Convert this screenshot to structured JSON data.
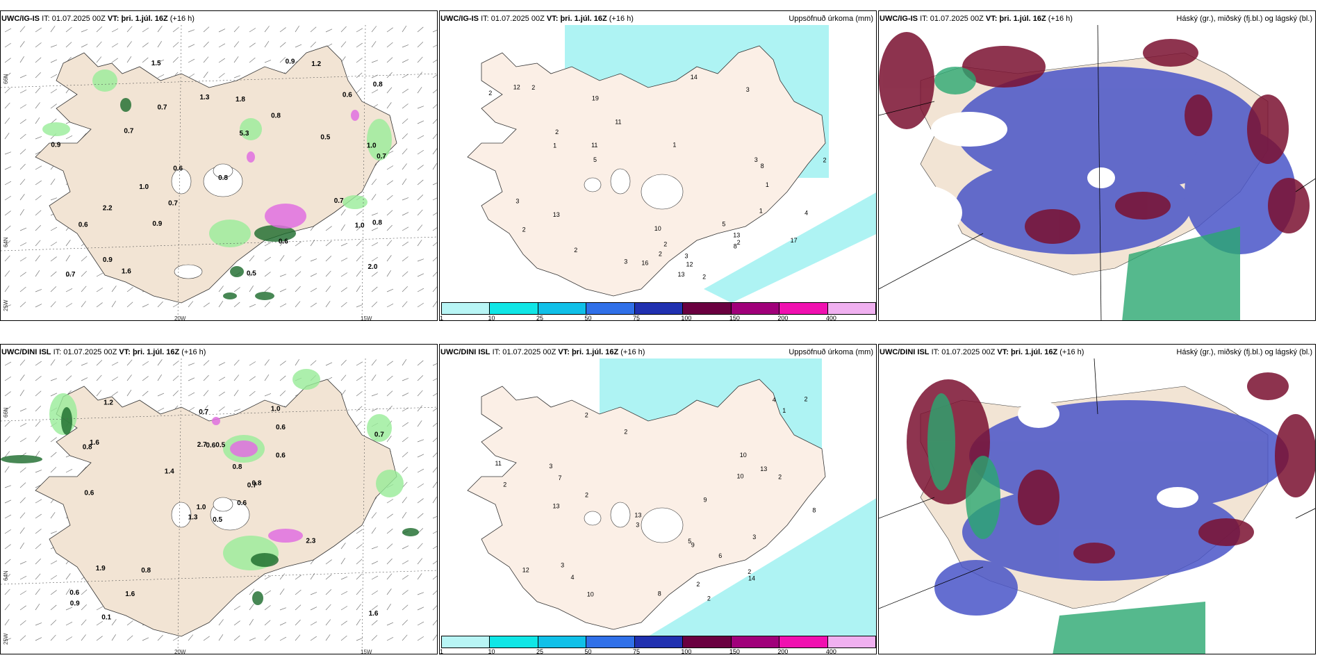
{
  "panels": {
    "top_left": {
      "model": "UWC/IG-IS",
      "it_label": "IT:",
      "it_value": "01.07.2025 00Z",
      "vt_label": "VT:",
      "vt_value": "þri. 1.júl. 16Z",
      "lead": "(+16 h)",
      "lon_labels": [
        "20W",
        "15W"
      ],
      "lat_labels": [
        "66N",
        "64N",
        "25W"
      ],
      "values": [
        "0.7",
        "1.0",
        "0.8",
        "0.7",
        "0.6",
        "0.8",
        "0.7",
        "0.9",
        "1.0",
        "0.6",
        "0.7",
        "0.7",
        "0.5",
        "0.9",
        "0.6",
        "0.8",
        "1.0",
        "0.9",
        "1.5",
        "1.3",
        "2.0",
        "1.8",
        "0.9",
        "2.2",
        "5.3",
        "1.2",
        "0.7",
        "0.6",
        "0.5",
        "0.8",
        "1.6"
      ]
    },
    "top_mid": {
      "model": "UWC/IG-IS",
      "it_label": "IT:",
      "it_value": "01.07.2025 00Z",
      "vt_label": "VT:",
      "vt_value": "þri. 1.júl. 16Z",
      "lead": "(+16 h)",
      "title_right": "Uppsöfnuð úrkoma (mm)",
      "values": [
        "3",
        "2",
        "1",
        "2",
        "2",
        "2",
        "2",
        "3",
        "3",
        "2",
        "13",
        "17",
        "16",
        "2",
        "3",
        "12",
        "13",
        "2",
        "4",
        "8",
        "2",
        "1",
        "1",
        "5",
        "3",
        "2",
        "14",
        "13",
        "19",
        "11",
        "12",
        "5",
        "1",
        "10",
        "8",
        "11"
      ]
    },
    "top_right": {
      "model": "UWC/IG-IS",
      "it_label": "IT:",
      "it_value": "01.07.2025 00Z",
      "vt_label": "VT:",
      "vt_value": "þri. 1.júl. 16Z",
      "lead": "(+16 h)",
      "title_right": "Háský (gr.), miðský (fj.bl.) og lágský (bl.)"
    },
    "bot_left": {
      "model": "UWC/DINI ISL",
      "it_label": "IT:",
      "it_value": "01.07.2025 00Z",
      "vt_label": "VT:",
      "vt_value": "þri. 1.júl. 16Z",
      "lead": "(+16 h)",
      "lon_labels": [
        "20W",
        "15W"
      ],
      "lat_labels": [
        "66N",
        "64N",
        "25W"
      ],
      "values": [
        "0.5",
        "0.8",
        "1.0",
        "0.6",
        "0.7",
        "0.8",
        "1.0",
        "0.5",
        "0.6",
        "0.6",
        "1.2",
        "1.6",
        "0.6",
        "0.7",
        "1.3",
        "0.6",
        "0.1",
        "2.7",
        "0.8",
        "1.9",
        "1.4",
        "0.9",
        "1.6",
        "0.6",
        "0.8",
        "2.3",
        "1.6",
        "0.7"
      ]
    },
    "bot_mid": {
      "model": "UWC/DINI ISL",
      "it_label": "IT:",
      "it_value": "01.07.2025 00Z",
      "vt_label": "VT:",
      "vt_value": "þri. 1.júl. 16Z",
      "lead": "(+16 h)",
      "title_right": "Uppsöfnuð úrkoma (mm)",
      "values": [
        "2",
        "2",
        "3",
        "3",
        "13",
        "2",
        "8",
        "2",
        "3",
        "4",
        "12",
        "11",
        "13",
        "5",
        "10",
        "4",
        "2",
        "1",
        "3",
        "2",
        "2",
        "9",
        "10",
        "14",
        "9",
        "10",
        "13",
        "7",
        "8",
        "2",
        "6",
        "2"
      ]
    },
    "bot_right": {
      "model": "UWC/DINI ISL",
      "it_label": "IT:",
      "it_value": "01.07.2025 00Z",
      "vt_label": "VT:",
      "vt_value": "þri. 1.júl. 16Z",
      "lead": "(+16 h)",
      "title_right": "Háský (gr.), miðský (fj.bl.) og lágský (bl.)"
    }
  },
  "legend": {
    "ticks": [
      "1",
      "10",
      "25",
      "50",
      "75",
      "100",
      "150",
      "200",
      "400"
    ],
    "colors": [
      "#b8f5f5",
      "#10e6e6",
      "#10c0e8",
      "#3070e8",
      "#2030b0",
      "#6a0040",
      "#a0007a",
      "#f010b0",
      "#f0b0f0"
    ]
  },
  "colors": {
    "land": "#f2e4d4",
    "land_warm": "#fbefe6",
    "sea_precip": "#aef3f3",
    "precip_green": "#98ec98",
    "precip_dark": "#1a6a2a",
    "precip_pink": "#e070e0",
    "cloud_low": "#4a55c8",
    "cloud_mid": "#7a1030",
    "cloud_high": "#2aa870"
  }
}
